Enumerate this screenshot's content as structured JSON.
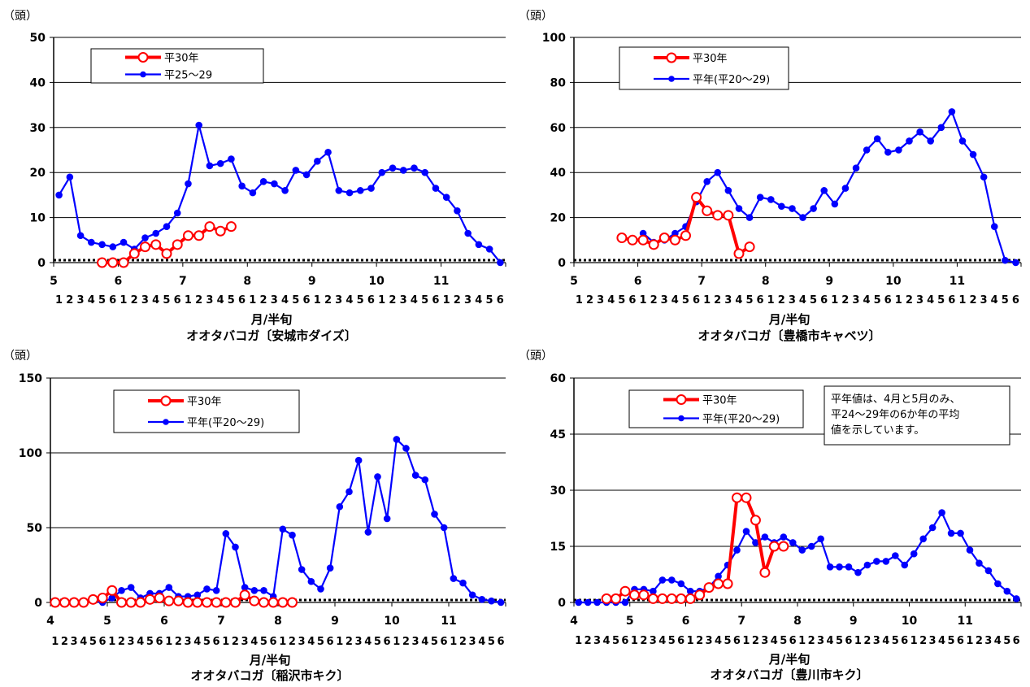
{
  "chart_data": [
    {
      "type": "line",
      "title": "オオタバコガ〔安城市ダイズ〕",
      "xlabel": "月/半旬",
      "ylabel": "（頭）",
      "ylim": [
        0,
        50
      ],
      "yticks": [
        "0",
        "10",
        "20",
        "30",
        "40",
        "50"
      ],
      "month_start": 5,
      "month_labels": [
        "5",
        "6",
        "7",
        "8",
        "9",
        "10",
        "11"
      ],
      "sub_labels": [
        "1",
        "2",
        "3",
        "4",
        "5",
        "6",
        "1",
        "2",
        "3",
        "4",
        "5",
        "6",
        "1",
        "2",
        "3",
        "4",
        "5",
        "6",
        "1",
        "2",
        "3",
        "4",
        "5",
        "6",
        "1",
        "2",
        "3",
        "4",
        "5",
        "6",
        "1",
        "2",
        "3",
        "4",
        "5",
        "6",
        "1",
        "2",
        "3",
        "4",
        "5",
        "6"
      ],
      "x_unit": "半旬（月×6）",
      "x": [
        "5/1",
        "5/2",
        "5/3",
        "5/4",
        "5/5",
        "5/6",
        "6/1",
        "6/2",
        "6/3",
        "6/4",
        "6/5",
        "6/6",
        "7/1",
        "7/2",
        "7/3",
        "7/4",
        "7/5",
        "7/6",
        "8/1",
        "8/2",
        "8/3",
        "8/4",
        "8/5",
        "8/6",
        "9/1",
        "9/2",
        "9/3",
        "9/4",
        "9/5",
        "9/6",
        "10/1",
        "10/2",
        "10/3",
        "10/4",
        "10/5",
        "10/6",
        "11/1",
        "11/2",
        "11/3",
        "11/4",
        "11/5",
        "11/6"
      ],
      "series": [
        {
          "name": "平30年",
          "color": "#ff0000",
          "values": [
            null,
            null,
            null,
            null,
            0,
            0,
            0,
            2,
            3.5,
            4,
            2,
            4,
            6,
            6,
            8,
            7,
            8,
            null,
            null,
            null,
            null,
            null,
            null,
            null,
            null,
            null,
            null,
            null,
            null,
            null,
            null,
            null,
            null,
            null,
            null,
            null,
            null,
            null,
            null,
            null,
            null,
            null
          ]
        },
        {
          "name": "平25～29",
          "color": "#0000ff",
          "values": [
            15,
            19,
            6,
            4.5,
            4,
            3.5,
            4.5,
            3,
            5.5,
            6.5,
            8,
            11,
            17.5,
            30.5,
            21.5,
            22,
            23,
            17,
            15.5,
            18,
            17.5,
            16,
            20.5,
            19.5,
            22.5,
            24.5,
            16,
            15.5,
            16,
            16.5,
            20,
            21,
            20.5,
            21,
            20,
            16.5,
            14.5,
            11.5,
            6.5,
            4,
            3,
            0
          ]
        }
      ],
      "legend": "top-left"
    },
    {
      "type": "line",
      "title": "オオタバコガ〔豊橋市キャベツ〕",
      "xlabel": "月/半旬",
      "ylabel": "（頭）",
      "ylim": [
        0,
        100
      ],
      "yticks": [
        "0",
        "20",
        "40",
        "60",
        "80",
        "100"
      ],
      "month_start": 5,
      "month_labels": [
        "5",
        "6",
        "7",
        "8",
        "9",
        "10",
        "11"
      ],
      "sub_labels": [
        "1",
        "2",
        "3",
        "4",
        "5",
        "6",
        "1",
        "2",
        "3",
        "4",
        "5",
        "6",
        "1",
        "2",
        "3",
        "4",
        "5",
        "6",
        "1",
        "2",
        "3",
        "4",
        "5",
        "6",
        "1",
        "2",
        "3",
        "4",
        "5",
        "6",
        "1",
        "2",
        "3",
        "4",
        "5",
        "6",
        "1",
        "2",
        "3",
        "4",
        "5",
        "6"
      ],
      "x_unit": "半旬（月×6）",
      "x": [
        "5/1",
        "5/2",
        "5/3",
        "5/4",
        "5/5",
        "5/6",
        "6/1",
        "6/2",
        "6/3",
        "6/4",
        "6/5",
        "6/6",
        "7/1",
        "7/2",
        "7/3",
        "7/4",
        "7/5",
        "7/6",
        "8/1",
        "8/2",
        "8/3",
        "8/4",
        "8/5",
        "8/6",
        "9/1",
        "9/2",
        "9/3",
        "9/4",
        "9/5",
        "9/6",
        "10/1",
        "10/2",
        "10/3",
        "10/4",
        "10/5",
        "10/6",
        "11/1",
        "11/2",
        "11/3",
        "11/4",
        "11/5",
        "11/6"
      ],
      "series": [
        {
          "name": "平30年",
          "color": "#ff0000",
          "values": [
            null,
            null,
            null,
            null,
            11,
            10,
            10,
            8,
            11,
            10,
            12,
            29,
            23,
            21,
            21,
            4,
            7,
            null,
            null,
            null,
            null,
            null,
            null,
            null,
            null,
            null,
            null,
            null,
            null,
            null,
            null,
            null,
            null,
            null,
            null,
            null,
            null,
            null,
            null,
            null,
            null,
            null
          ]
        },
        {
          "name": "平年(平20～29)",
          "color": "#0000ff",
          "values": [
            null,
            null,
            null,
            null,
            null,
            null,
            13,
            9,
            10,
            13,
            16,
            27,
            36,
            40,
            32,
            24,
            20,
            29,
            28,
            25,
            24,
            20,
            24,
            32,
            26,
            33,
            42,
            50,
            55,
            49,
            50,
            54,
            58,
            54,
            60,
            67,
            54,
            48,
            38,
            16,
            1,
            0
          ]
        }
      ],
      "legend": "top-left"
    },
    {
      "type": "line",
      "title": "オオタバコガ〔稲沢市キク〕",
      "xlabel": "月/半旬",
      "ylabel": "（頭）",
      "ylim": [
        0,
        150
      ],
      "yticks": [
        "0",
        "50",
        "100",
        "150"
      ],
      "month_start": 4,
      "month_labels": [
        "4",
        "5",
        "6",
        "7",
        "8",
        "9",
        "10",
        "11"
      ],
      "sub_labels": [
        "1",
        "2",
        "3",
        "4",
        "5",
        "6",
        "1",
        "2",
        "3",
        "4",
        "5",
        "6",
        "1",
        "2",
        "3",
        "4",
        "5",
        "6",
        "1",
        "2",
        "3",
        "4",
        "5",
        "6",
        "1",
        "2",
        "3",
        "4",
        "5",
        "6",
        "1",
        "2",
        "3",
        "4",
        "5",
        "6",
        "1",
        "2",
        "3",
        "4",
        "5",
        "6",
        "1",
        "2",
        "3",
        "4",
        "5",
        "6"
      ],
      "x_unit": "半旬（月×6）",
      "x": [
        "4/1",
        "4/2",
        "4/3",
        "4/4",
        "4/5",
        "4/6",
        "5/1",
        "5/2",
        "5/3",
        "5/4",
        "5/5",
        "5/6",
        "6/1",
        "6/2",
        "6/3",
        "6/4",
        "6/5",
        "6/6",
        "7/1",
        "7/2",
        "7/3",
        "7/4",
        "7/5",
        "7/6",
        "8/1",
        "8/2",
        "8/3",
        "8/4",
        "8/5",
        "8/6",
        "9/1",
        "9/2",
        "9/3",
        "9/4",
        "9/5",
        "9/6",
        "10/1",
        "10/2",
        "10/3",
        "10/4",
        "10/5",
        "10/6",
        "11/1",
        "11/2",
        "11/3",
        "11/4",
        "11/5",
        "11/6"
      ],
      "series": [
        {
          "name": "平30年",
          "color": "#ff0000",
          "values": [
            0,
            0,
            0,
            0,
            2,
            3,
            8,
            0,
            0,
            0,
            2,
            3,
            1,
            1,
            0,
            0,
            0,
            0,
            0,
            0,
            5,
            1,
            0,
            0,
            0,
            0,
            null,
            null,
            null,
            null,
            null,
            null,
            null,
            null,
            null,
            null,
            null,
            null,
            null,
            null,
            null,
            null,
            null,
            null,
            null,
            null,
            null,
            null
          ]
        },
        {
          "name": "平年(平20～29)",
          "color": "#0000ff",
          "values": [
            0,
            0,
            0,
            0,
            1,
            0,
            3,
            8,
            10,
            3,
            6,
            6,
            10,
            4,
            4,
            5,
            9,
            8,
            46,
            37,
            10,
            8,
            8,
            4,
            49,
            45,
            22,
            14,
            9,
            23,
            64,
            74,
            95,
            47,
            84,
            56,
            109,
            103,
            85,
            82,
            59,
            50,
            16,
            13,
            5,
            2,
            1,
            0
          ]
        }
      ],
      "legend": "top-left"
    },
    {
      "type": "line",
      "title": "オオタバコガ〔豊川市キク〕",
      "xlabel": "月/半旬",
      "ylabel": "（頭）",
      "ylim": [
        0,
        60
      ],
      "yticks": [
        "0",
        "15",
        "30",
        "45",
        "60"
      ],
      "month_start": 4,
      "month_labels": [
        "4",
        "5",
        "6",
        "7",
        "8",
        "9",
        "10",
        "11"
      ],
      "sub_labels": [
        "1",
        "2",
        "3",
        "4",
        "5",
        "6",
        "1",
        "2",
        "3",
        "4",
        "5",
        "6",
        "1",
        "2",
        "3",
        "4",
        "5",
        "6",
        "1",
        "2",
        "3",
        "4",
        "5",
        "6",
        "1",
        "2",
        "3",
        "4",
        "5",
        "6",
        "1",
        "2",
        "3",
        "4",
        "5",
        "6",
        "1",
        "2",
        "3",
        "4",
        "5",
        "6",
        "1",
        "2",
        "3",
        "4",
        "5",
        "6"
      ],
      "x_unit": "半旬（月×6）",
      "x": [
        "4/1",
        "4/2",
        "4/3",
        "4/4",
        "4/5",
        "4/6",
        "5/1",
        "5/2",
        "5/3",
        "5/4",
        "5/5",
        "5/6",
        "6/1",
        "6/2",
        "6/3",
        "6/4",
        "6/5",
        "6/6",
        "7/1",
        "7/2",
        "7/3",
        "7/4",
        "7/5",
        "7/6",
        "8/1",
        "8/2",
        "8/3",
        "8/4",
        "8/5",
        "8/6",
        "9/1",
        "9/2",
        "9/3",
        "9/4",
        "9/5",
        "9/6",
        "10/1",
        "10/2",
        "10/3",
        "10/4",
        "10/5",
        "10/6",
        "11/1",
        "11/2",
        "11/3",
        "11/4",
        "11/5",
        "11/6"
      ],
      "series": [
        {
          "name": "平30年",
          "color": "#ff0000",
          "values": [
            null,
            null,
            null,
            1,
            1,
            3,
            2,
            2,
            1,
            1,
            1,
            1,
            1,
            2,
            4,
            5,
            5,
            28,
            28,
            22,
            8,
            15,
            15,
            null,
            null,
            null,
            null,
            null,
            null,
            null,
            null,
            null,
            null,
            null,
            null,
            null,
            null,
            null,
            null,
            null,
            null,
            null,
            null,
            null,
            null,
            null,
            null,
            null
          ]
        },
        {
          "name": "平年(平20～29)",
          "color": "#0000ff",
          "values": [
            0,
            0,
            0,
            0,
            0,
            0,
            3.5,
            3.5,
            3,
            6,
            6,
            5,
            3,
            3,
            4,
            7,
            10,
            14,
            19,
            16,
            17.5,
            16,
            17.5,
            16,
            14,
            15,
            17,
            9.5,
            9.5,
            9.5,
            8,
            10,
            11,
            11,
            12.5,
            10,
            13,
            17,
            20,
            24,
            18.5,
            18.5,
            14,
            10.5,
            8.5,
            5,
            3,
            1
          ]
        }
      ],
      "legend": "top-left",
      "annotation": [
        "平年値は、4月と5月のみ、",
        "平24～29年の6か年の平均",
        "値を示しています。"
      ]
    }
  ]
}
